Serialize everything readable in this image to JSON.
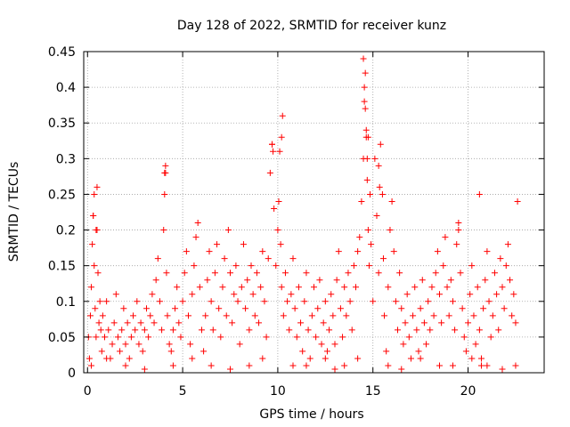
{
  "chart_data": {
    "type": "scatter",
    "title": "Day 128 of 2022, SRMTID for receiver kunz",
    "xlabel": "GPS time / hours",
    "ylabel": "SRMTID / TECUs",
    "xlim": [
      -0.2,
      24
    ],
    "ylim": [
      0,
      0.45
    ],
    "xticks": [
      0,
      5,
      10,
      15,
      20
    ],
    "xtick_labels": [
      "0",
      "5",
      "10",
      "15",
      "20"
    ],
    "yticks": [
      0,
      0.05,
      0.1,
      0.15,
      0.2,
      0.25,
      0.3,
      0.35,
      0.4,
      0.45
    ],
    "ytick_labels": [
      "0",
      "0.05",
      "0.1",
      "0.15",
      "0.2",
      "0.25",
      "0.3",
      "0.35",
      "0.4",
      "0.45"
    ],
    "grid": true,
    "marker": "+",
    "color": "#ff0000",
    "series": [
      {
        "x": [
          0.05,
          0.1,
          0.15,
          0.2,
          0.25,
          0.3,
          0.35,
          0.4,
          0.45,
          0.5,
          0.55,
          0.6,
          0.65,
          0.7,
          0.75,
          0.8,
          0.9,
          1.0,
          1.1,
          1.2,
          1.3,
          1.4,
          1.5,
          1.6,
          1.7,
          1.8,
          1.9,
          2.0,
          2.1,
          2.2,
          2.3,
          2.4,
          2.5,
          2.6,
          2.7,
          2.8,
          2.9,
          3.0,
          3.1,
          3.2,
          3.3,
          3.4,
          3.5,
          3.6,
          3.7,
          3.8,
          3.9,
          4.0,
          4.05,
          4.1,
          4.15,
          4.2,
          4.3,
          4.4,
          4.5,
          4.6,
          4.7,
          4.8,
          4.9,
          5.0,
          5.1,
          5.2,
          5.3,
          5.4,
          5.5,
          5.6,
          5.7,
          5.8,
          5.9,
          6.0,
          6.1,
          6.2,
          6.3,
          6.4,
          6.5,
          6.6,
          6.7,
          6.8,
          6.9,
          7.0,
          7.1,
          7.2,
          7.3,
          7.4,
          7.5,
          7.6,
          7.7,
          7.8,
          7.9,
          8.0,
          8.1,
          8.2,
          8.3,
          8.4,
          8.5,
          8.6,
          8.7,
          8.8,
          8.9,
          9.0,
          9.1,
          9.2,
          9.3,
          9.4,
          9.5,
          9.6,
          9.7,
          9.8,
          9.9,
          10.0,
          10.05,
          10.1,
          10.15,
          10.2,
          10.3,
          10.4,
          10.5,
          10.6,
          10.7,
          10.8,
          10.9,
          11.0,
          11.1,
          11.2,
          11.3,
          11.4,
          11.5,
          11.6,
          11.7,
          11.8,
          11.9,
          12.0,
          12.1,
          12.2,
          12.3,
          12.4,
          12.5,
          12.6,
          12.7,
          12.8,
          12.9,
          13.0,
          13.1,
          13.2,
          13.3,
          13.4,
          13.5,
          13.6,
          13.7,
          13.8,
          13.9,
          14.0,
          14.1,
          14.2,
          14.3,
          14.4,
          14.5,
          14.55,
          14.6,
          14.65,
          14.7,
          14.75,
          14.8,
          14.85,
          14.9,
          15.0,
          15.1,
          15.2,
          15.3,
          15.4,
          15.5,
          15.55,
          15.6,
          15.7,
          15.8,
          15.9,
          16.0,
          16.1,
          16.2,
          16.3,
          16.4,
          16.5,
          16.6,
          16.7,
          16.8,
          16.9,
          17.0,
          17.1,
          17.2,
          17.3,
          17.4,
          17.5,
          17.6,
          17.7,
          17.8,
          17.9,
          18.0,
          18.1,
          18.2,
          18.3,
          18.4,
          18.5,
          18.6,
          18.7,
          18.8,
          18.9,
          19.0,
          19.1,
          19.2,
          19.3,
          19.4,
          19.5,
          19.6,
          19.7,
          19.8,
          19.9,
          20.0,
          20.1,
          20.2,
          20.3,
          20.4,
          20.5,
          20.6,
          20.7,
          20.8,
          20.9,
          21.0,
          21.1,
          21.2,
          21.3,
          21.4,
          21.5,
          21.6,
          21.7,
          21.8,
          21.9,
          22.0,
          22.1,
          22.2,
          22.3,
          22.4,
          22.5,
          22.6,
          0.3,
          0.35,
          0.45,
          0.5,
          4.05,
          4.1,
          9.7,
          9.75,
          10.2,
          10.25,
          14.5,
          14.55,
          14.6,
          14.65,
          14.7,
          14.75,
          15.3,
          15.35,
          19.5,
          20.6,
          20.7,
          0.2,
          1.0,
          2.0,
          3.0,
          4.5,
          5.5,
          6.5,
          7.5,
          8.5,
          9.2,
          10.8,
          11.5,
          12.5,
          13.0,
          13.5,
          14.2,
          15.8,
          16.5,
          17.5,
          18.5,
          19.2,
          20.2,
          21.0,
          21.8,
          22.5
        ],
        "y": [
          0.05,
          0.02,
          0.08,
          0.12,
          0.18,
          0.22,
          0.15,
          0.09,
          0.05,
          0.2,
          0.14,
          0.07,
          0.1,
          0.06,
          0.03,
          0.08,
          0.05,
          0.1,
          0.06,
          0.02,
          0.04,
          0.07,
          0.11,
          0.05,
          0.03,
          0.06,
          0.09,
          0.04,
          0.07,
          0.02,
          0.05,
          0.08,
          0.06,
          0.1,
          0.04,
          0.07,
          0.03,
          0.06,
          0.09,
          0.05,
          0.08,
          0.11,
          0.07,
          0.13,
          0.16,
          0.1,
          0.06,
          0.2,
          0.25,
          0.28,
          0.14,
          0.08,
          0.04,
          0.03,
          0.06,
          0.09,
          0.12,
          0.07,
          0.05,
          0.1,
          0.14,
          0.17,
          0.08,
          0.04,
          0.11,
          0.15,
          0.19,
          0.21,
          0.12,
          0.06,
          0.03,
          0.08,
          0.13,
          0.17,
          0.1,
          0.06,
          0.14,
          0.18,
          0.09,
          0.05,
          0.12,
          0.16,
          0.08,
          0.2,
          0.14,
          0.07,
          0.11,
          0.15,
          0.1,
          0.04,
          0.12,
          0.18,
          0.09,
          0.13,
          0.06,
          0.15,
          0.11,
          0.08,
          0.14,
          0.07,
          0.12,
          0.17,
          0.1,
          0.05,
          0.16,
          0.28,
          0.32,
          0.23,
          0.15,
          0.2,
          0.24,
          0.31,
          0.18,
          0.12,
          0.08,
          0.14,
          0.1,
          0.06,
          0.11,
          0.16,
          0.09,
          0.05,
          0.12,
          0.07,
          0.03,
          0.1,
          0.14,
          0.06,
          0.02,
          0.08,
          0.12,
          0.05,
          0.09,
          0.13,
          0.04,
          0.07,
          0.1,
          0.03,
          0.06,
          0.11,
          0.08,
          0.04,
          0.13,
          0.17,
          0.09,
          0.05,
          0.12,
          0.08,
          0.14,
          0.1,
          0.06,
          0.15,
          0.12,
          0.17,
          0.19,
          0.24,
          0.3,
          0.38,
          0.42,
          0.34,
          0.27,
          0.2,
          0.15,
          0.25,
          0.18,
          0.1,
          0.3,
          0.22,
          0.14,
          0.32,
          0.25,
          0.16,
          0.08,
          0.03,
          0.12,
          0.2,
          0.24,
          0.17,
          0.1,
          0.06,
          0.14,
          0.09,
          0.04,
          0.07,
          0.11,
          0.05,
          0.02,
          0.08,
          0.12,
          0.06,
          0.03,
          0.09,
          0.13,
          0.07,
          0.04,
          0.1,
          0.06,
          0.12,
          0.08,
          0.14,
          0.17,
          0.11,
          0.07,
          0.15,
          0.19,
          0.12,
          0.08,
          0.13,
          0.1,
          0.06,
          0.18,
          0.21,
          0.14,
          0.09,
          0.05,
          0.03,
          0.07,
          0.11,
          0.15,
          0.08,
          0.04,
          0.12,
          0.06,
          0.02,
          0.09,
          0.13,
          0.17,
          0.1,
          0.05,
          0.08,
          0.14,
          0.11,
          0.06,
          0.16,
          0.12,
          0.09,
          0.15,
          0.18,
          0.13,
          0.08,
          0.11,
          0.07,
          0.24,
          0.22,
          0.25,
          0.2,
          0.26,
          0.28,
          0.29,
          0.32,
          0.31,
          0.33,
          0.36,
          0.44,
          0.4,
          0.37,
          0.33,
          0.3,
          0.33,
          0.29,
          0.26,
          0.2,
          0.25,
          0.01,
          0.01,
          0.02,
          0.01,
          0.005,
          0.01,
          0.02,
          0.01,
          0.005,
          0.01,
          0.02,
          0.01,
          0.01,
          0.02,
          0.005,
          0.01,
          0.02,
          0.01,
          0.005,
          0.02,
          0.01,
          0.01,
          0.02,
          0.01,
          0.005,
          0.01
        ]
      }
    ]
  }
}
